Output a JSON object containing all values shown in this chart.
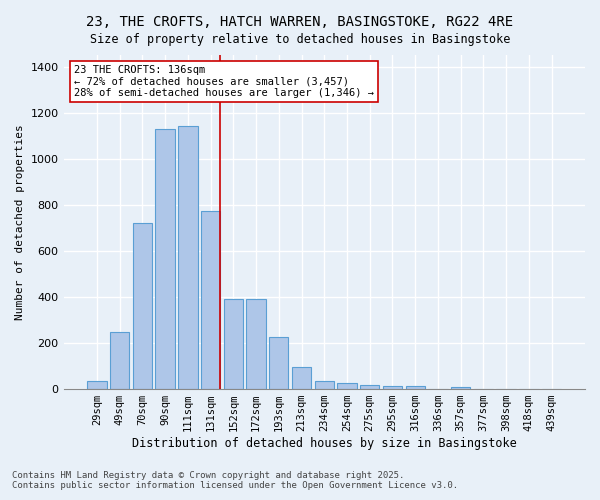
{
  "title_line1": "23, THE CROFTS, HATCH WARREN, BASINGSTOKE, RG22 4RE",
  "title_line2": "Size of property relative to detached houses in Basingstoke",
  "xlabel": "Distribution of detached houses by size in Basingstoke",
  "ylabel": "Number of detached properties",
  "categories": [
    "29sqm",
    "49sqm",
    "70sqm",
    "90sqm",
    "111sqm",
    "131sqm",
    "152sqm",
    "172sqm",
    "193sqm",
    "213sqm",
    "234sqm",
    "254sqm",
    "275sqm",
    "295sqm",
    "316sqm",
    "336sqm",
    "357sqm",
    "377sqm",
    "398sqm",
    "418sqm",
    "439sqm"
  ],
  "values": [
    35,
    248,
    720,
    1130,
    1140,
    775,
    390,
    390,
    228,
    95,
    35,
    25,
    18,
    15,
    12,
    0,
    10,
    0,
    0,
    0,
    0
  ],
  "bar_color": "#aec6e8",
  "bar_edge_color": "#5a9fd4",
  "vline_pos": 5.425,
  "marker_label_line1": "23 THE CROFTS: 136sqm",
  "marker_label_line2": "← 72% of detached houses are smaller (3,457)",
  "marker_label_line3": "28% of semi-detached houses are larger (1,346) →",
  "vline_color": "#cc0000",
  "annotation_box_color": "#ffffff",
  "annotation_box_edge": "#cc0000",
  "background_color": "#e8f0f8",
  "grid_color": "#ffffff",
  "ylim": [
    0,
    1450
  ],
  "yticks": [
    0,
    200,
    400,
    600,
    800,
    1000,
    1200,
    1400
  ],
  "footnote_line1": "Contains HM Land Registry data © Crown copyright and database right 2025.",
  "footnote_line2": "Contains public sector information licensed under the Open Government Licence v3.0."
}
